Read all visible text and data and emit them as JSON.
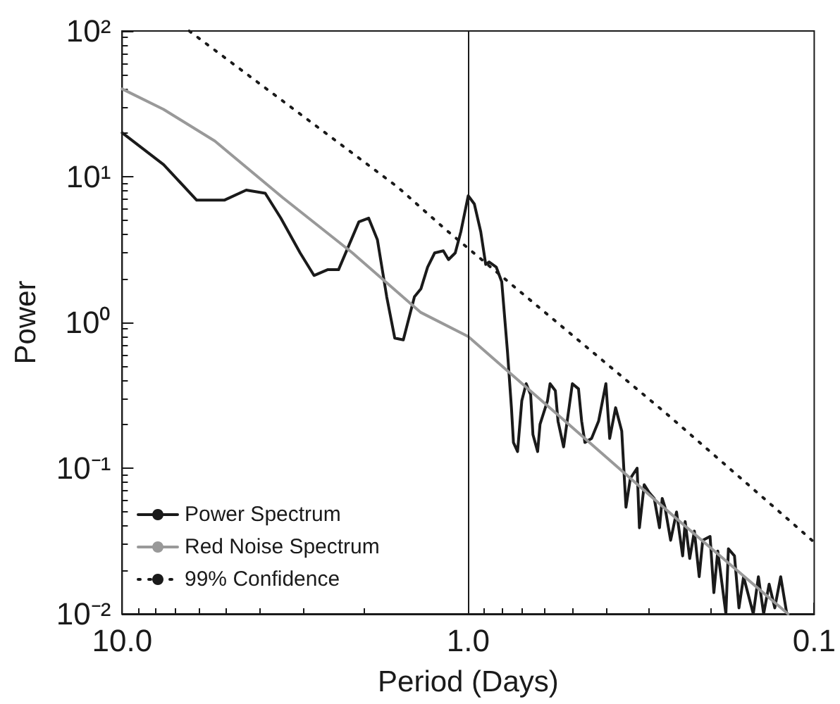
{
  "chart_data": {
    "type": "line",
    "xlabel": "Period (Days)",
    "ylabel": "Power",
    "log": "xy",
    "grid": false,
    "legend": "bottom left",
    "marker": "none",
    "xlim": [
      10,
      0.1
    ],
    "xticks": [
      {
        "value": 10,
        "label": "10.0"
      },
      {
        "value": 1,
        "label": "1.0"
      },
      {
        "value": 0.1,
        "label": "0.1"
      }
    ],
    "ylim": [
      0.01,
      100
    ],
    "yticks": [
      {
        "value": 0.01,
        "label": "10⁻²"
      },
      {
        "value": 0.1,
        "label": "10⁻¹"
      },
      {
        "value": 1,
        "label": "10⁰"
      },
      {
        "value": 10,
        "label": "10¹"
      },
      {
        "value": 100,
        "label": "10²"
      }
    ],
    "ref_lines": [
      {
        "axis": "x",
        "value": 1,
        "color": "#1a1a1a",
        "line_style": "solid"
      }
    ],
    "series": [
      {
        "name": "Power Spectrum",
        "color": "#1a1a1a",
        "line_style": "solid",
        "x": [
          10,
          7.59,
          6.09,
          5.07,
          4.38,
          3.86,
          3.48,
          3.06,
          2.79,
          2.55,
          2.37,
          2.07,
          1.94,
          1.83,
          1.72,
          1.63,
          1.54,
          1.43,
          1.37,
          1.31,
          1.25,
          1.18,
          1.14,
          1.09,
          1.05,
          1.0,
          0.96,
          0.92,
          0.89,
          0.87,
          0.83,
          0.8,
          0.77,
          0.75,
          0.74,
          0.72,
          0.7,
          0.68,
          0.66,
          0.65,
          0.63,
          0.62,
          0.59,
          0.58,
          0.56,
          0.55,
          0.53,
          0.51,
          0.5,
          0.48,
          0.47,
          0.46,
          0.44,
          0.42,
          0.4,
          0.39,
          0.375,
          0.36,
          0.35,
          0.34,
          0.325,
          0.32,
          0.31,
          0.3,
          0.29,
          0.28,
          0.275,
          0.27,
          0.26,
          0.25,
          0.24,
          0.236,
          0.229,
          0.222,
          0.215,
          0.21,
          0.2,
          0.195,
          0.19,
          0.18,
          0.177,
          0.17,
          0.165,
          0.16,
          0.15,
          0.145,
          0.14,
          0.135,
          0.13,
          0.125,
          0.12
        ],
        "values": [
          20,
          12.1,
          6.9,
          6.9,
          8.1,
          7.7,
          5.2,
          3.0,
          2.1,
          2.3,
          2.3,
          4.9,
          5.2,
          3.7,
          1.5,
          0.78,
          0.76,
          1.5,
          1.7,
          2.4,
          3.0,
          3.1,
          2.7,
          3.0,
          4.2,
          7.4,
          6.5,
          4.2,
          2.5,
          2.6,
          2.4,
          1.9,
          0.63,
          0.26,
          0.15,
          0.13,
          0.29,
          0.38,
          0.32,
          0.17,
          0.13,
          0.2,
          0.29,
          0.38,
          0.34,
          0.21,
          0.14,
          0.27,
          0.38,
          0.35,
          0.21,
          0.15,
          0.16,
          0.21,
          0.38,
          0.16,
          0.26,
          0.18,
          0.054,
          0.085,
          0.1,
          0.039,
          0.077,
          0.068,
          0.062,
          0.039,
          0.062,
          0.054,
          0.032,
          0.05,
          0.025,
          0.043,
          0.024,
          0.037,
          0.018,
          0.032,
          0.034,
          0.014,
          0.027,
          0.01,
          0.028,
          0.025,
          0.011,
          0.018,
          0.01,
          0.018,
          0.01,
          0.016,
          0.011,
          0.018,
          0.01
        ]
      },
      {
        "name": "Red Noise Spectrum",
        "color": "#999999",
        "line_style": "solid",
        "x": [
          10,
          7.6,
          5.4,
          3.44,
          2.16,
          1.37,
          1.0,
          0.5,
          0.25,
          0.119
        ],
        "values": [
          40,
          29,
          17.6,
          7.2,
          3.0,
          1.17,
          0.8,
          0.19,
          0.045,
          0.01
        ]
      },
      {
        "name": "99% Confidence",
        "color": "#1a1a1a",
        "line_style": "dotted",
        "x": [
          6.4,
          1.6,
          1.17,
          0.267,
          0.115,
          0.1
        ],
        "values": [
          100,
          8.5,
          4.4,
          0.236,
          0.0415,
          0.031
        ]
      }
    ]
  }
}
